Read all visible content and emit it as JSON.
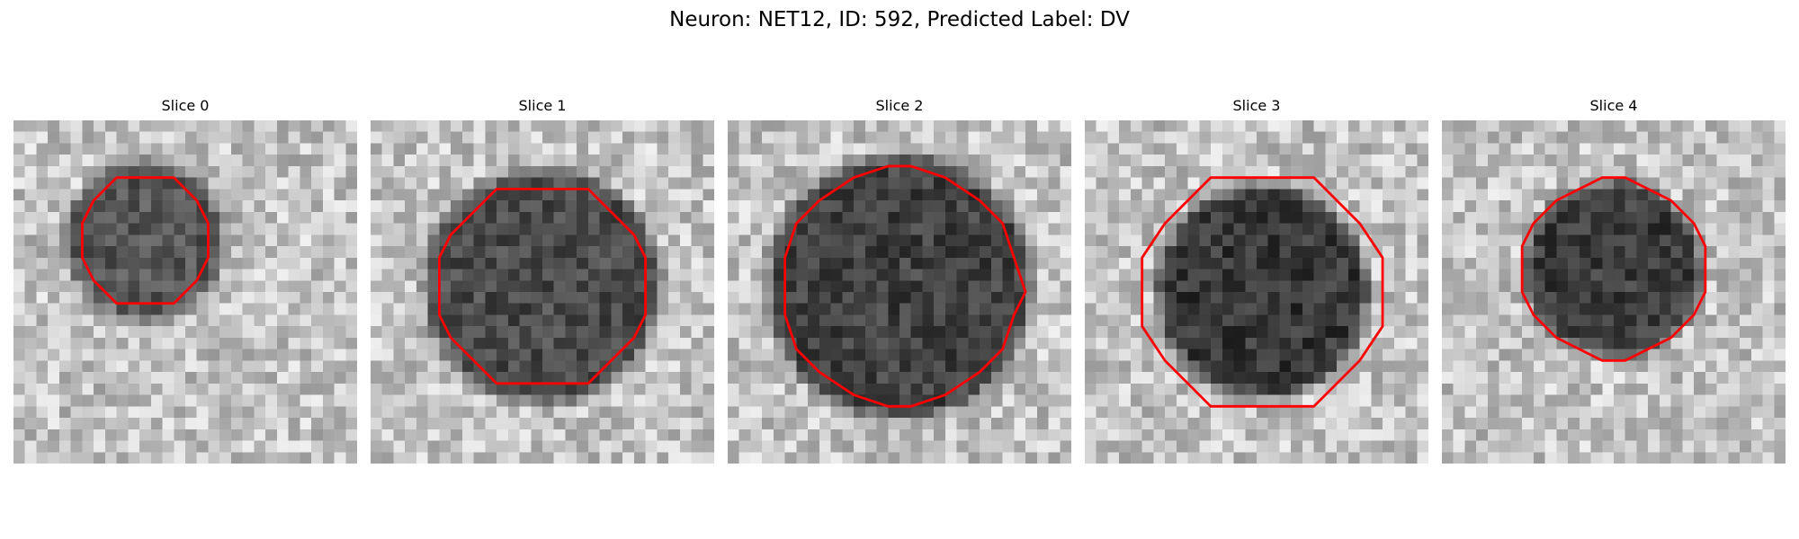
{
  "figure": {
    "title": "Neuron: NET12, ID: 592, Predicted Label: DV"
  },
  "panels": [
    {
      "title": "Slice 0",
      "seed": 11,
      "cx": 11.5,
      "cy": 10.5,
      "r": 5.6,
      "dark_r": 6.2,
      "dark": 85
    },
    {
      "title": "Slice 1",
      "seed": 23,
      "cx": 15.0,
      "cy": 14.5,
      "r": 9.0,
      "dark_r": 9.5,
      "dark": 75
    },
    {
      "title": "Slice 2",
      "seed": 37,
      "cx": 15.0,
      "cy": 14.5,
      "r": 10.5,
      "dark_r": 10.8,
      "dark": 65
    },
    {
      "title": "Slice 3",
      "seed": 41,
      "cx": 15.5,
      "cy": 15.0,
      "r": 10.5,
      "dark_r": 8.5,
      "dark": 55
    },
    {
      "title": "Slice 4",
      "seed": 53,
      "cx": 15.0,
      "cy": 13.0,
      "r": 8.0,
      "dark_r": 7.0,
      "dark": 60
    }
  ],
  "colors": {
    "contour": "#ff0000",
    "background": "#ffffff"
  }
}
